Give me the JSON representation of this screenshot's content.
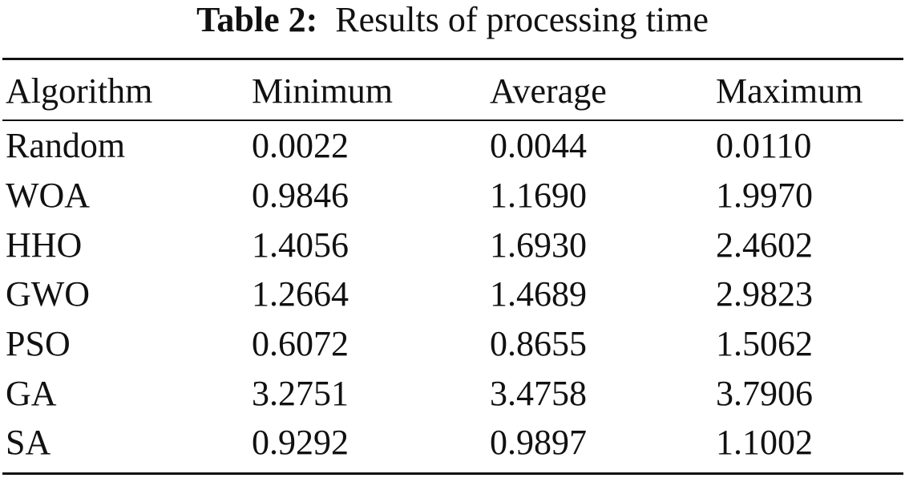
{
  "caption": {
    "label": "Table 2:",
    "text": "Results of processing time"
  },
  "table": {
    "headers": [
      "Algorithm",
      "Minimum",
      "Average",
      "Maximum"
    ],
    "rows": [
      [
        "Random",
        "0.0022",
        "0.0044",
        "0.0110"
      ],
      [
        "WOA",
        "0.9846",
        "1.1690",
        "1.9970"
      ],
      [
        "HHO",
        "1.4056",
        "1.6930",
        "2.4602"
      ],
      [
        "GWO",
        "1.2664",
        "1.4689",
        "2.9823"
      ],
      [
        "PSO",
        "0.6072",
        "0.8655",
        "1.5062"
      ],
      [
        "GA",
        "3.2751",
        "3.4758",
        "3.7906"
      ],
      [
        "SA",
        "0.9292",
        "0.9897",
        "1.1002"
      ]
    ]
  }
}
